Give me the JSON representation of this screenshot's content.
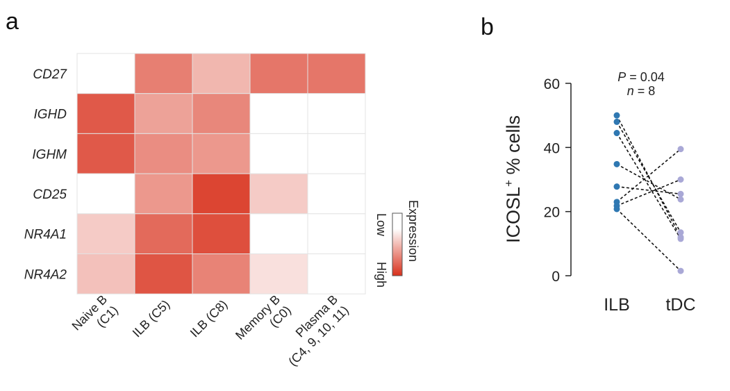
{
  "panel_labels": {
    "a": "a",
    "b": "b"
  },
  "colors": {
    "low": "#ffffff",
    "high": "#d8301b",
    "grid": "#e3e3e3",
    "ilb_dot": "#2f78b2",
    "tdc_dot": "#a9a8d6",
    "axis": "#222222"
  },
  "chart_data": [
    {
      "type": "heatmap",
      "rows": [
        "CD27",
        "IGHD",
        "IGHM",
        "CD25",
        "NR4A1",
        "NR4A2"
      ],
      "columns": [
        [
          "Naive B",
          "(C1)"
        ],
        [
          "ILB (C5)"
        ],
        [
          "ILB (C8)"
        ],
        [
          "Memory B",
          "(C0)"
        ],
        [
          "Plasma B",
          "(C4, 9, 10, 11)"
        ]
      ],
      "values": [
        [
          0.0,
          0.62,
          0.35,
          0.66,
          0.66
        ],
        [
          0.8,
          0.45,
          0.58,
          0.0,
          0.0
        ],
        [
          0.8,
          0.55,
          0.5,
          0.0,
          0.0
        ],
        [
          0.0,
          0.5,
          0.9,
          0.25,
          0.0
        ],
        [
          0.25,
          0.72,
          0.85,
          0.0,
          0.0
        ],
        [
          0.3,
          0.82,
          0.6,
          0.15,
          0.0
        ]
      ],
      "legend": {
        "title": "Expression",
        "low_label": "Low",
        "high_label": "High"
      }
    },
    {
      "type": "scatter",
      "ylabel_main": "ICOSL",
      "ylabel_sup": "+",
      "ylabel_rest": " % cells",
      "categories": [
        "ILB",
        "tDC"
      ],
      "ylim": [
        0,
        60
      ],
      "yticks": [
        "0",
        "20",
        "40",
        "60"
      ],
      "annotation": {
        "p_symbol": "P",
        "p_value": " = 0.04",
        "n_symbol": "n",
        "n_value": " = 8"
      },
      "pairs": [
        [
          50.0,
          12.0
        ],
        [
          48.0,
          13.5
        ],
        [
          44.5,
          11.5
        ],
        [
          34.8,
          23.8
        ],
        [
          27.8,
          25.5
        ],
        [
          23.0,
          39.5
        ],
        [
          21.8,
          30.0
        ],
        [
          20.8,
          1.5
        ]
      ]
    }
  ]
}
